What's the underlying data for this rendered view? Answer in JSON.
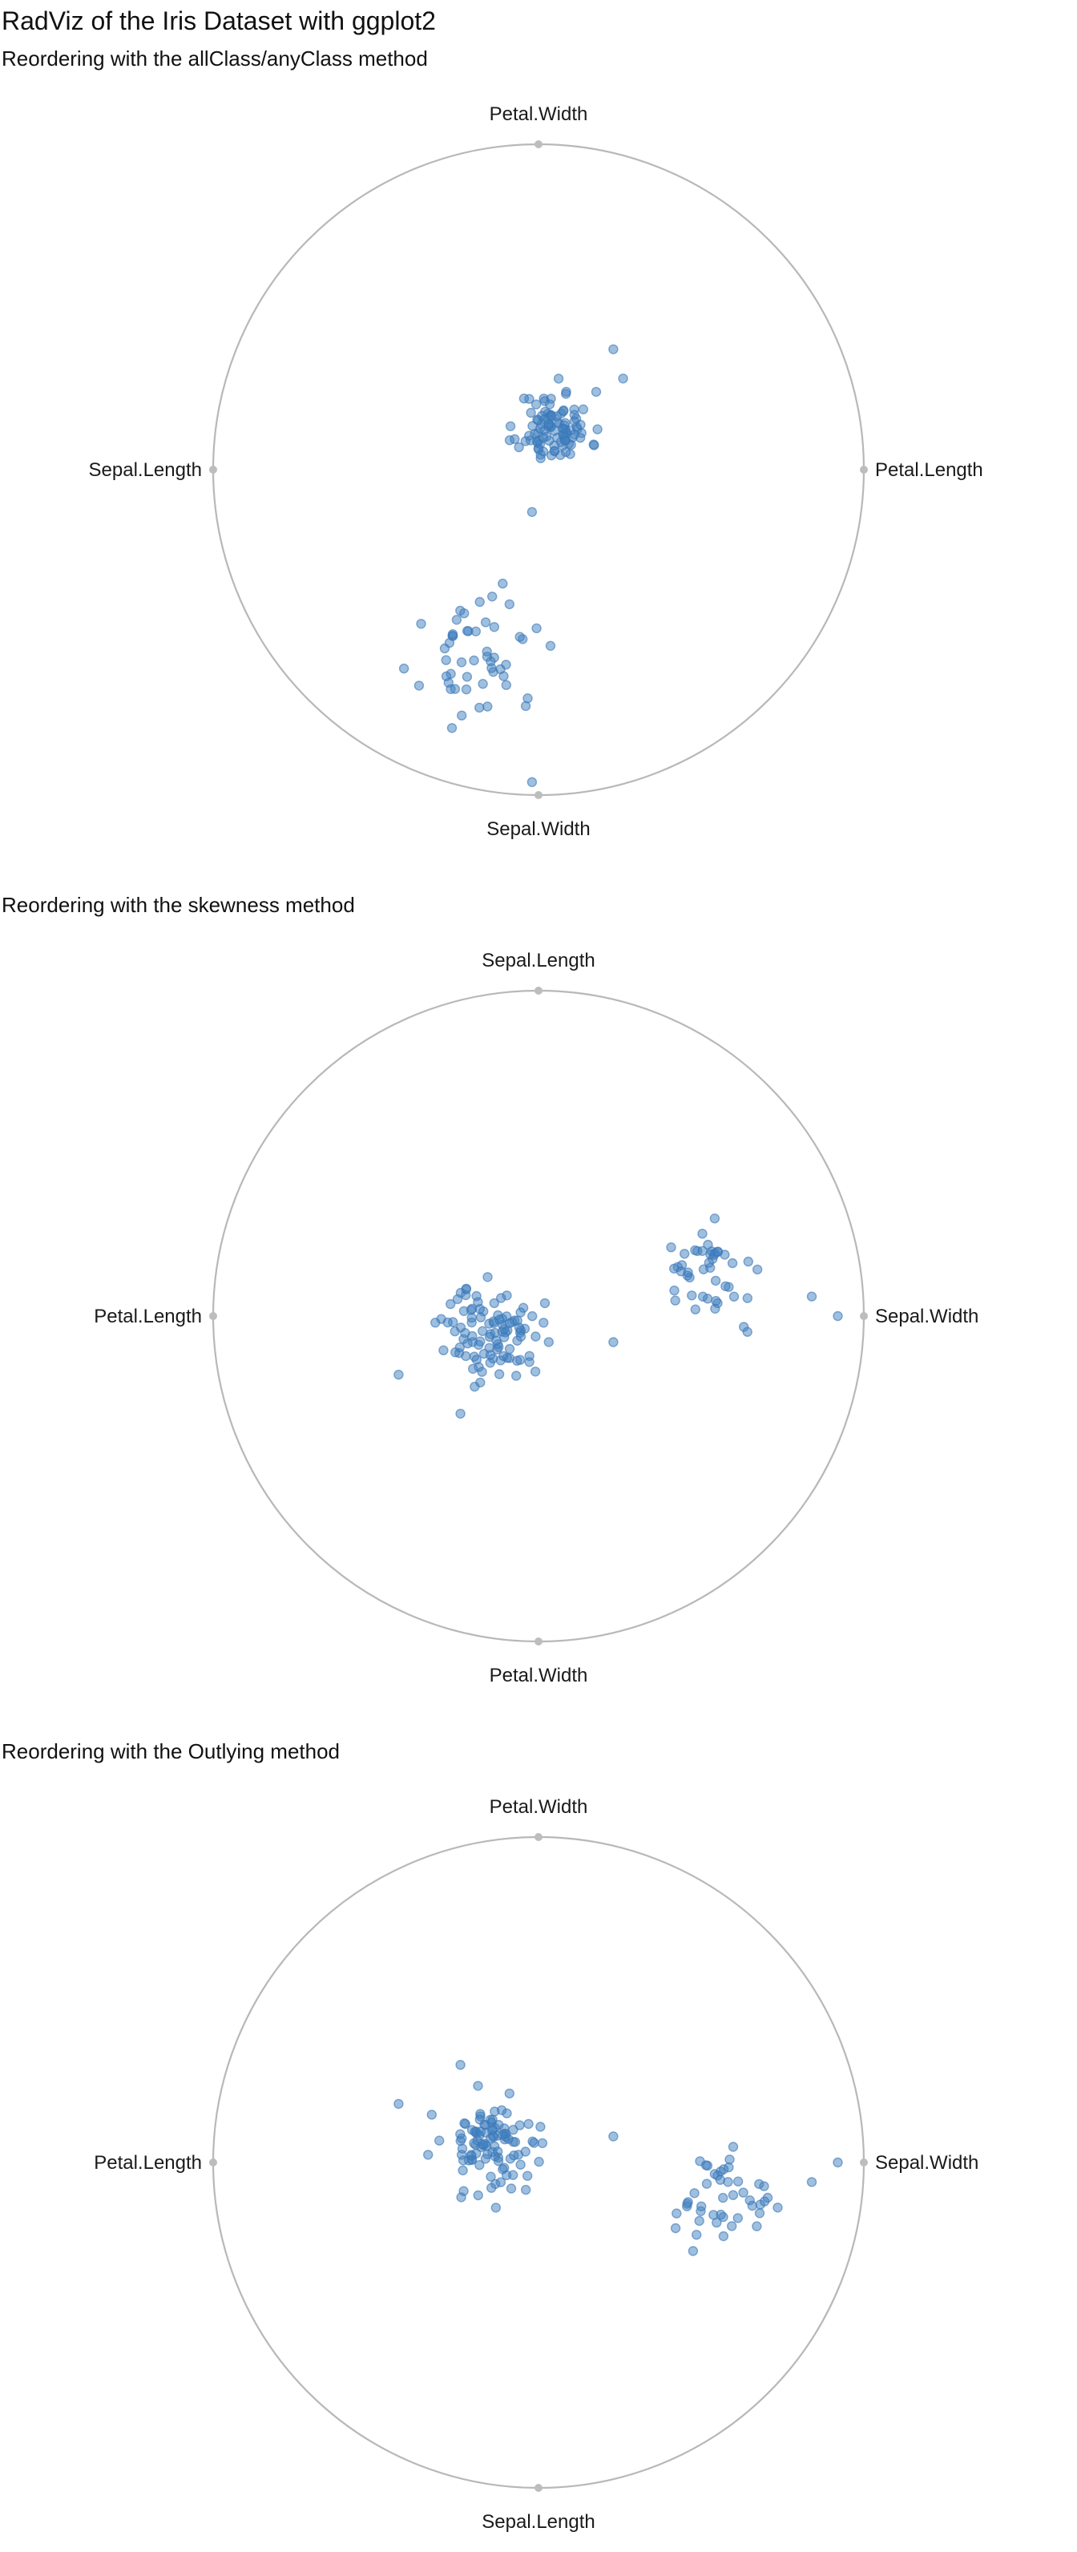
{
  "title": "RadViz of the Iris Dataset with ggplot2",
  "colors": {
    "point": "#3f7fbf",
    "circle": "#b8b8b8",
    "anchor": "#bdbdbd"
  },
  "chart_data": [
    {
      "type": "scatter",
      "subtitle": "Reordering with the allClass/anyClass method",
      "anchors": [
        {
          "label": "Petal.Width",
          "position": "top",
          "x": 0,
          "y": 1
        },
        {
          "label": "Petal.Length",
          "position": "right",
          "x": 1,
          "y": 0
        },
        {
          "label": "Sepal.Width",
          "position": "bottom",
          "x": 0,
          "y": -1
        },
        {
          "label": "Sepal.Length",
          "position": "left",
          "x": -1,
          "y": 0
        }
      ],
      "xlim": [
        -1,
        1
      ],
      "ylim": [
        -1,
        1
      ],
      "clusters": [
        {
          "cx": 0.05,
          "cy": 0.13,
          "sx": 0.055,
          "sy": 0.055,
          "n": 100,
          "seed": 11
        },
        {
          "cx": -0.17,
          "cy": -0.59,
          "sx": 0.09,
          "sy": 0.08,
          "n": 50,
          "seed": 23
        }
      ],
      "points": [
        [
          0.23,
          0.37
        ],
        [
          0.26,
          0.28
        ],
        [
          -0.02,
          -0.13
        ],
        [
          -0.02,
          -0.96
        ],
        [
          -0.11,
          -0.35
        ]
      ]
    },
    {
      "type": "scatter",
      "subtitle": "Reordering with the skewness method",
      "anchors": [
        {
          "label": "Sepal.Length",
          "position": "top",
          "x": 0,
          "y": 1
        },
        {
          "label": "Sepal.Width",
          "position": "right",
          "x": 1,
          "y": 0
        },
        {
          "label": "Petal.Width",
          "position": "bottom",
          "x": 0,
          "y": -1
        },
        {
          "label": "Petal.Length",
          "position": "left",
          "x": -1,
          "y": 0
        }
      ],
      "xlim": [
        -1,
        1
      ],
      "ylim": [
        -1,
        1
      ],
      "clusters": [
        {
          "cx": -0.14,
          "cy": -0.05,
          "sx": 0.075,
          "sy": 0.07,
          "n": 100,
          "seed": 37
        },
        {
          "cx": 0.54,
          "cy": 0.13,
          "sx": 0.08,
          "sy": 0.07,
          "n": 45,
          "seed": 41
        }
      ],
      "points": [
        [
          0.92,
          0.0
        ],
        [
          0.84,
          0.06
        ],
        [
          0.23,
          -0.08
        ],
        [
          -0.43,
          -0.18
        ],
        [
          -0.24,
          -0.3
        ]
      ]
    },
    {
      "type": "scatter",
      "subtitle": "Reordering with the Outlying method",
      "anchors": [
        {
          "label": "Petal.Width",
          "position": "top",
          "x": 0,
          "y": 1
        },
        {
          "label": "Sepal.Width",
          "position": "right",
          "x": 1,
          "y": 0
        },
        {
          "label": "Sepal.Length",
          "position": "bottom",
          "x": 0,
          "y": -1
        },
        {
          "label": "Petal.Length",
          "position": "left",
          "x": -1,
          "y": 0
        }
      ],
      "xlim": [
        -1,
        1
      ],
      "ylim": [
        -1,
        1
      ],
      "clusters": [
        {
          "cx": -0.14,
          "cy": 0.06,
          "sx": 0.075,
          "sy": 0.07,
          "n": 100,
          "seed": 53
        },
        {
          "cx": 0.56,
          "cy": -0.13,
          "sx": 0.08,
          "sy": 0.07,
          "n": 45,
          "seed": 67
        }
      ],
      "points": [
        [
          0.92,
          0.0
        ],
        [
          0.84,
          -0.06
        ],
        [
          0.23,
          0.08
        ],
        [
          -0.43,
          0.18
        ],
        [
          -0.24,
          0.3
        ]
      ]
    }
  ]
}
